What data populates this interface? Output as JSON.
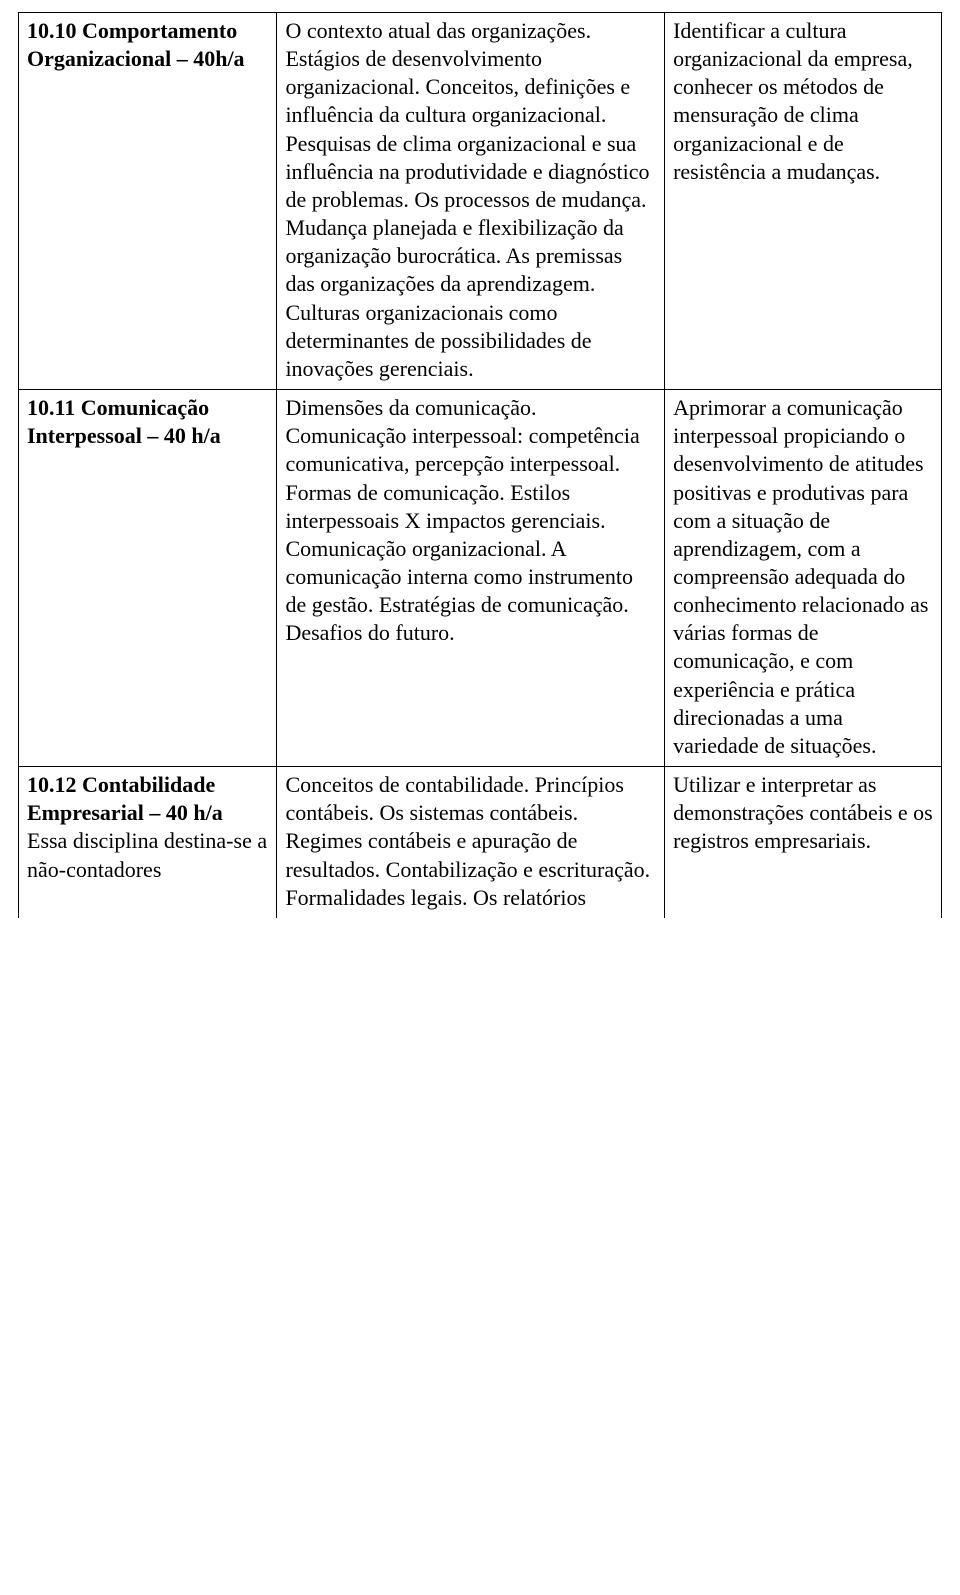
{
  "rows": [
    {
      "col1_num": "10.10 Comportamento Organizacional – 40h/a",
      "col1_note": "",
      "col2": "O contexto atual das organizações. Estágios de desenvolvimento organizacional. Conceitos, definições e influência da cultura organizacional. Pesquisas de clima organizacional e sua influência na produtividade e diagnóstico de problemas. Os processos de mudança. Mudança planejada e flexibilização da organização burocrática. As premissas das organizações da aprendizagem. Culturas organizacionais como determinantes de possibilidades de inovações gerenciais.",
      "col3": "Identificar a cultura organizacional da empresa, conhecer os métodos de mensuração de clima organizacional e de resistência a mudanças."
    },
    {
      "col1_num": "10.11 Comunicação Interpessoal – 40 h/a",
      "col1_note": "",
      "col2": "Dimensões da comunicação. Comunicação interpessoal: competência comunicativa, percepção interpessoal. Formas de comunicação. Estilos interpessoais X impactos gerenciais. Comunicação organizacional. A comunicação interna como instrumento de gestão. Estratégias de comunicação. Desafios do futuro.",
      "col3": "Aprimorar a comunicação interpessoal propiciando o desenvolvimento de atitudes positivas e produtivas para com a situação de aprendizagem, com a compreensão adequada do conhecimento relacionado as várias formas de comunicação, e com experiência e prática direcionadas a uma variedade de situações."
    },
    {
      "col1_num": "10.12 Contabilidade Empresarial – 40 h/a",
      "col1_note": " Essa disciplina destina-se a não-contadores",
      "col2": "Conceitos de contabilidade. Princípios contábeis. Os sistemas contábeis. Regimes contábeis e apuração de resultados. Contabilização e escrituração. Formalidades legais. Os relatórios",
      "col3": "Utilizar e interpretar as demonstrações contábeis e os registros empresariais."
    }
  ]
}
